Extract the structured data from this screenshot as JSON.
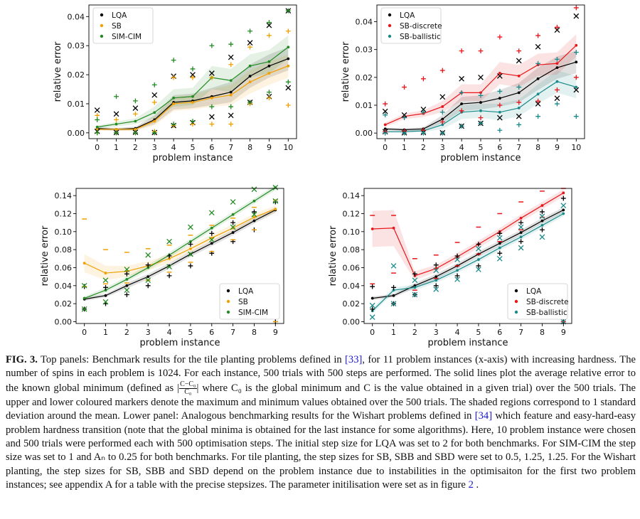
{
  "chart_data": [
    {
      "id": "tl",
      "type": "line",
      "xlabel": "problem instance",
      "ylabel": "relative error",
      "x": [
        0,
        1,
        2,
        3,
        4,
        5,
        6,
        7,
        8,
        9,
        10
      ],
      "xticks": [
        "0",
        "1",
        "2",
        "3",
        "4",
        "5",
        "6",
        "7",
        "8",
        "9",
        "10"
      ],
      "ylim": [
        -0.002,
        0.044
      ],
      "yticks": [
        0.0,
        0.01,
        0.02,
        0.03,
        0.04
      ],
      "ytick_labels": [
        "0.00",
        "0.01",
        "0.02",
        "0.03",
        "0.04"
      ],
      "legend": "top-left",
      "series": [
        {
          "name": "LQA",
          "color": "#000000",
          "marker": "x",
          "values": [
            0.0015,
            0.0012,
            0.0015,
            0.0045,
            0.0105,
            0.011,
            0.0125,
            0.014,
            0.0195,
            0.023,
            0.0255
          ],
          "std": [
            0.0005,
            0.0005,
            0.0006,
            0.0015,
            0.0025,
            0.0025,
            0.003,
            0.0035,
            0.004,
            0.004,
            0.004
          ],
          "max": [
            0.0078,
            0.0065,
            0.0085,
            0.013,
            0.0195,
            0.02,
            0.0205,
            0.026,
            0.031,
            0.037,
            0.042
          ],
          "min": [
            0.0005,
            0.0001,
            0.0002,
            0.0001,
            0.0025,
            0.0035,
            0.0055,
            0.006,
            0.0105,
            0.0125,
            0.0155
          ]
        },
        {
          "name": "SB",
          "color": "#f0a000",
          "marker": "+",
          "values": [
            0.0012,
            0.0012,
            0.0012,
            0.004,
            0.01,
            0.0105,
            0.012,
            0.013,
            0.0175,
            0.0205,
            0.023
          ],
          "std": [
            0.0005,
            0.0005,
            0.0006,
            0.0015,
            0.0025,
            0.0025,
            0.003,
            0.0035,
            0.004,
            0.004,
            0.004
          ],
          "max": [
            0.006,
            0.0045,
            0.0065,
            0.0105,
            0.019,
            0.019,
            0.019,
            0.0235,
            0.0295,
            0.0335,
            0.035
          ],
          "min": [
            0.0,
            0.0,
            0.0,
            0.0005,
            0.0025,
            0.003,
            0.003,
            0.003,
            0.01,
            0.012,
            0.0095
          ]
        },
        {
          "name": "SIM-CIM",
          "color": "#228b22",
          "marker": "+",
          "values": [
            0.002,
            0.003,
            0.004,
            0.007,
            0.012,
            0.0125,
            0.019,
            0.018,
            0.023,
            0.0245,
            0.0295
          ],
          "std": [
            0.0005,
            0.0008,
            0.001,
            0.002,
            0.003,
            0.003,
            0.004,
            0.004,
            0.004,
            0.004,
            0.004
          ],
          "max": [
            0.0045,
            0.0125,
            0.011,
            0.0165,
            0.025,
            0.022,
            0.03,
            0.0305,
            0.035,
            0.038,
            0.042
          ],
          "min": [
            0.0,
            0.0,
            0.0,
            0.0,
            0.003,
            0.004,
            0.009,
            0.009,
            0.0105,
            0.014,
            0.0175
          ]
        }
      ]
    },
    {
      "id": "tr",
      "type": "line",
      "xlabel": "problem instance",
      "ylabel": "relative error",
      "x": [
        0,
        1,
        2,
        3,
        4,
        5,
        6,
        7,
        8,
        9,
        10
      ],
      "xticks": [
        "0",
        "1",
        "2",
        "3",
        "4",
        "5",
        "6",
        "7",
        "8",
        "9",
        "10"
      ],
      "ylim": [
        -0.002,
        0.046
      ],
      "yticks": [
        0.0,
        0.01,
        0.02,
        0.03,
        0.04
      ],
      "ytick_labels": [
        "0.00",
        "0.01",
        "0.02",
        "0.03",
        "0.04"
      ],
      "legend": "top-left",
      "series": [
        {
          "name": "LQA",
          "color": "#000000",
          "marker": "x",
          "values": [
            0.0015,
            0.0012,
            0.0015,
            0.005,
            0.0105,
            0.011,
            0.0125,
            0.0145,
            0.0195,
            0.0235,
            0.0255
          ],
          "std": [
            0.0005,
            0.0005,
            0.0006,
            0.0015,
            0.0025,
            0.0025,
            0.003,
            0.0035,
            0.004,
            0.004,
            0.004
          ],
          "max": [
            0.0078,
            0.0065,
            0.0085,
            0.013,
            0.0195,
            0.02,
            0.0205,
            0.026,
            0.031,
            0.037,
            0.042
          ],
          "min": [
            0.0005,
            0.0001,
            0.0002,
            0.0001,
            0.0025,
            0.0035,
            0.0055,
            0.006,
            0.0105,
            0.0125,
            0.0155
          ]
        },
        {
          "name": "SB-discrete",
          "color": "#e8151b",
          "marker": "+",
          "values": [
            0.003,
            0.006,
            0.007,
            0.0095,
            0.0145,
            0.0145,
            0.0215,
            0.0205,
            0.0245,
            0.025,
            0.0315
          ],
          "std": [
            0.0008,
            0.001,
            0.0012,
            0.002,
            0.003,
            0.003,
            0.004,
            0.004,
            0.004,
            0.004,
            0.004
          ],
          "max": [
            0.0105,
            0.0165,
            0.0195,
            0.0225,
            0.0295,
            0.0295,
            0.0345,
            0.0295,
            0.035,
            0.038,
            0.045
          ],
          "min": [
            0.0005,
            0.0007,
            0.001,
            0.004,
            0.008,
            0.0055,
            0.01,
            0.011,
            0.0115,
            0.0155,
            0.02
          ]
        },
        {
          "name": "SB-ballistic",
          "color": "#1a8a8a",
          "marker": "+",
          "values": [
            0.0005,
            0.0005,
            0.0008,
            0.003,
            0.0075,
            0.008,
            0.0075,
            0.009,
            0.014,
            0.0185,
            0.0165
          ],
          "std": [
            0.0004,
            0.0004,
            0.0005,
            0.0015,
            0.0025,
            0.0025,
            0.003,
            0.003,
            0.0035,
            0.004,
            0.004
          ],
          "max": [
            0.0065,
            0.0055,
            0.0075,
            0.0075,
            0.0145,
            0.0135,
            0.015,
            0.0165,
            0.025,
            0.0265,
            0.029
          ],
          "min": [
            0.0,
            0.0,
            0.0,
            0.0,
            0.0025,
            0.0035,
            0.001,
            0.003,
            0.006,
            0.0105,
            0.006
          ]
        }
      ]
    },
    {
      "id": "bl",
      "type": "line",
      "xlabel": "problem instance",
      "ylabel": "relative error",
      "x": [
        0,
        1,
        2,
        3,
        4,
        5,
        6,
        7,
        8,
        9
      ],
      "xticks": [
        "0",
        "1",
        "2",
        "3",
        "4",
        "5",
        "6",
        "7",
        "8",
        "9"
      ],
      "ylim": [
        -0.002,
        0.148
      ],
      "yticks": [
        0.0,
        0.02,
        0.04,
        0.06,
        0.08,
        0.1,
        0.12,
        0.14
      ],
      "ytick_labels": [
        "0.00",
        "0.02",
        "0.04",
        "0.06",
        "0.08",
        "0.10",
        "0.12",
        "0.14"
      ],
      "legend": "bottom-right",
      "series": [
        {
          "name": "LQA",
          "color": "#000000",
          "marker": "+",
          "values": [
            0.025,
            0.029,
            0.04,
            0.05,
            0.062,
            0.075,
            0.087,
            0.099,
            0.112,
            0.124
          ],
          "std": [
            0.002,
            0.002,
            0.003,
            0.003,
            0.003,
            0.003,
            0.003,
            0.003,
            0.003,
            0.003
          ],
          "max": [
            0.039,
            0.038,
            0.053,
            0.063,
            0.073,
            0.086,
            0.098,
            0.11,
            0.122,
            0.133
          ],
          "min": [
            0.014,
            0.02,
            0.03,
            0.04,
            0.051,
            0.062,
            0.076,
            0.089,
            0.102,
            0.0
          ]
        },
        {
          "name": "SB",
          "color": "#f0a000",
          "marker": "_",
          "values": [
            0.065,
            0.054,
            0.056,
            0.062,
            0.07,
            0.081,
            0.093,
            0.104,
            0.116,
            0.125
          ],
          "std": [
            0.01,
            0.008,
            0.006,
            0.005,
            0.005,
            0.004,
            0.004,
            0.004,
            0.004,
            0.004
          ],
          "max": [
            0.114,
            0.08,
            0.077,
            0.081,
            0.085,
            0.096,
            0.107,
            0.115,
            0.127,
            0.135
          ],
          "min": [
            0.039,
            0.042,
            0.043,
            0.046,
            0.055,
            0.066,
            0.078,
            0.091,
            0.102,
            0.0
          ]
        },
        {
          "name": "SIM-CIM",
          "color": "#228b22",
          "marker": "x",
          "values": [
            0.026,
            0.035,
            0.047,
            0.06,
            0.074,
            0.089,
            0.104,
            0.119,
            0.134,
            0.149
          ],
          "std": [
            0.002,
            0.003,
            0.003,
            0.003,
            0.003,
            0.003,
            0.003,
            0.003,
            0.003,
            0.003
          ],
          "max": [
            0.04,
            0.046,
            0.058,
            0.074,
            0.089,
            0.105,
            0.121,
            0.133,
            0.147,
            0.149
          ],
          "min": [
            0.014,
            0.022,
            0.035,
            0.046,
            0.061,
            0.075,
            0.091,
            0.105,
            0.119,
            0.134
          ]
        }
      ]
    },
    {
      "id": "br",
      "type": "line",
      "xlabel": "problem instance",
      "ylabel": "relative error",
      "x": [
        0,
        1,
        2,
        3,
        4,
        5,
        6,
        7,
        8,
        9
      ],
      "xticks": [
        "0",
        "1",
        "2",
        "3",
        "4",
        "5",
        "6",
        "7",
        "8",
        "9"
      ],
      "ylim": [
        -0.002,
        0.148
      ],
      "yticks": [
        0.0,
        0.02,
        0.04,
        0.06,
        0.08,
        0.1,
        0.12,
        0.14
      ],
      "ytick_labels": [
        "0.00",
        "0.02",
        "0.04",
        "0.06",
        "0.08",
        "0.10",
        "0.12",
        "0.14"
      ],
      "legend": "bottom-right",
      "series": [
        {
          "name": "LQA",
          "color": "#000000",
          "marker": "+",
          "values": [
            0.026,
            0.029,
            0.04,
            0.05,
            0.062,
            0.075,
            0.087,
            0.099,
            0.112,
            0.124
          ],
          "std": [
            0.002,
            0.002,
            0.003,
            0.003,
            0.003,
            0.003,
            0.003,
            0.003,
            0.003,
            0.003
          ],
          "max": [
            0.039,
            0.038,
            0.053,
            0.063,
            0.073,
            0.086,
            0.098,
            0.11,
            0.122,
            0.137
          ],
          "min": [
            0.014,
            0.02,
            0.03,
            0.04,
            0.051,
            0.062,
            0.076,
            0.089,
            0.102,
            0.0
          ]
        },
        {
          "name": "SB-discrete",
          "color": "#e8151b",
          "marker": "_",
          "values": [
            0.103,
            0.104,
            0.051,
            0.059,
            0.072,
            0.086,
            0.1,
            0.115,
            0.129,
            0.143
          ],
          "std": [
            0.02,
            0.02,
            0.005,
            0.004,
            0.004,
            0.004,
            0.004,
            0.004,
            0.004,
            0.004
          ],
          "max": [
            0.118,
            0.118,
            0.07,
            0.074,
            0.088,
            0.105,
            0.12,
            0.133,
            0.145,
            0.148
          ],
          "min": [
            0.042,
            0.054,
            0.035,
            0.048,
            0.062,
            0.075,
            0.089,
            0.102,
            0.116,
            0.0
          ]
        },
        {
          "name": "SB-ballistic",
          "color": "#1a8a8a",
          "marker": "x",
          "values": [
            0.012,
            0.035,
            0.038,
            0.046,
            0.057,
            0.069,
            0.082,
            0.094,
            0.107,
            0.12
          ],
          "std": [
            0.003,
            0.003,
            0.003,
            0.003,
            0.003,
            0.003,
            0.003,
            0.003,
            0.003,
            0.003
          ],
          "max": [
            0.018,
            0.062,
            0.046,
            0.057,
            0.069,
            0.081,
            0.093,
            0.105,
            0.117,
            0.129
          ],
          "min": [
            0.005,
            0.02,
            0.03,
            0.036,
            0.047,
            0.058,
            0.07,
            0.082,
            0.094,
            0.0
          ]
        }
      ]
    }
  ],
  "caption": {
    "label": "FIG. 3.",
    "part1": " Top panels: Benchmark results for the tile planting problems defined in ",
    "ref1": "[33]",
    "part2": ", for 11 problem instances (x-axis) with increasing hardness. The number of spins in each problem is 1024. For each instance, 500 trials with 500 steps are performed. The solid lines plot the average relative error to the known global minimum (defined as |",
    "frac_num": "C−C₀",
    "frac_den": "C₀",
    "part3": "| where C₀ is the global minimum and C is the value obtained in a given trial) over the 500 trials. The upper and lower coloured markers denote the maximum and minimum values obtained over the 500 trials. The shaded regions correspond to 1 standard deviation around the mean. Lower panel: Analogous benchmarking results for the Wishart problems defined in ",
    "ref2": "[34]",
    "part4": " which feature and easy-hard-easy problem hardness transition (note that the global minima is obtained for the last instance for some algorithms). Here, 10 problem instance were chosen and 500 trials were performed each with 500 optimisation steps. The initial step size for LQA was set to 2 for both benchmarks. For SIM-CIM the step size was set to 1 and Aₙ to 0.25 for both benchmarks. For tile planting, the step sizes for SB, SBB and SBD were set to 0.5, 1.25, 1.25. For the Wishart planting, the step sizes for SB, SBB and SBD depend on the problem instance due to instabilities in the optimisaiton for the first two problem instances; see appendix A for a table with the precise stepsizes. The parameter initilisation were set as in figure ",
    "ref3": "2",
    "part5": " ."
  }
}
